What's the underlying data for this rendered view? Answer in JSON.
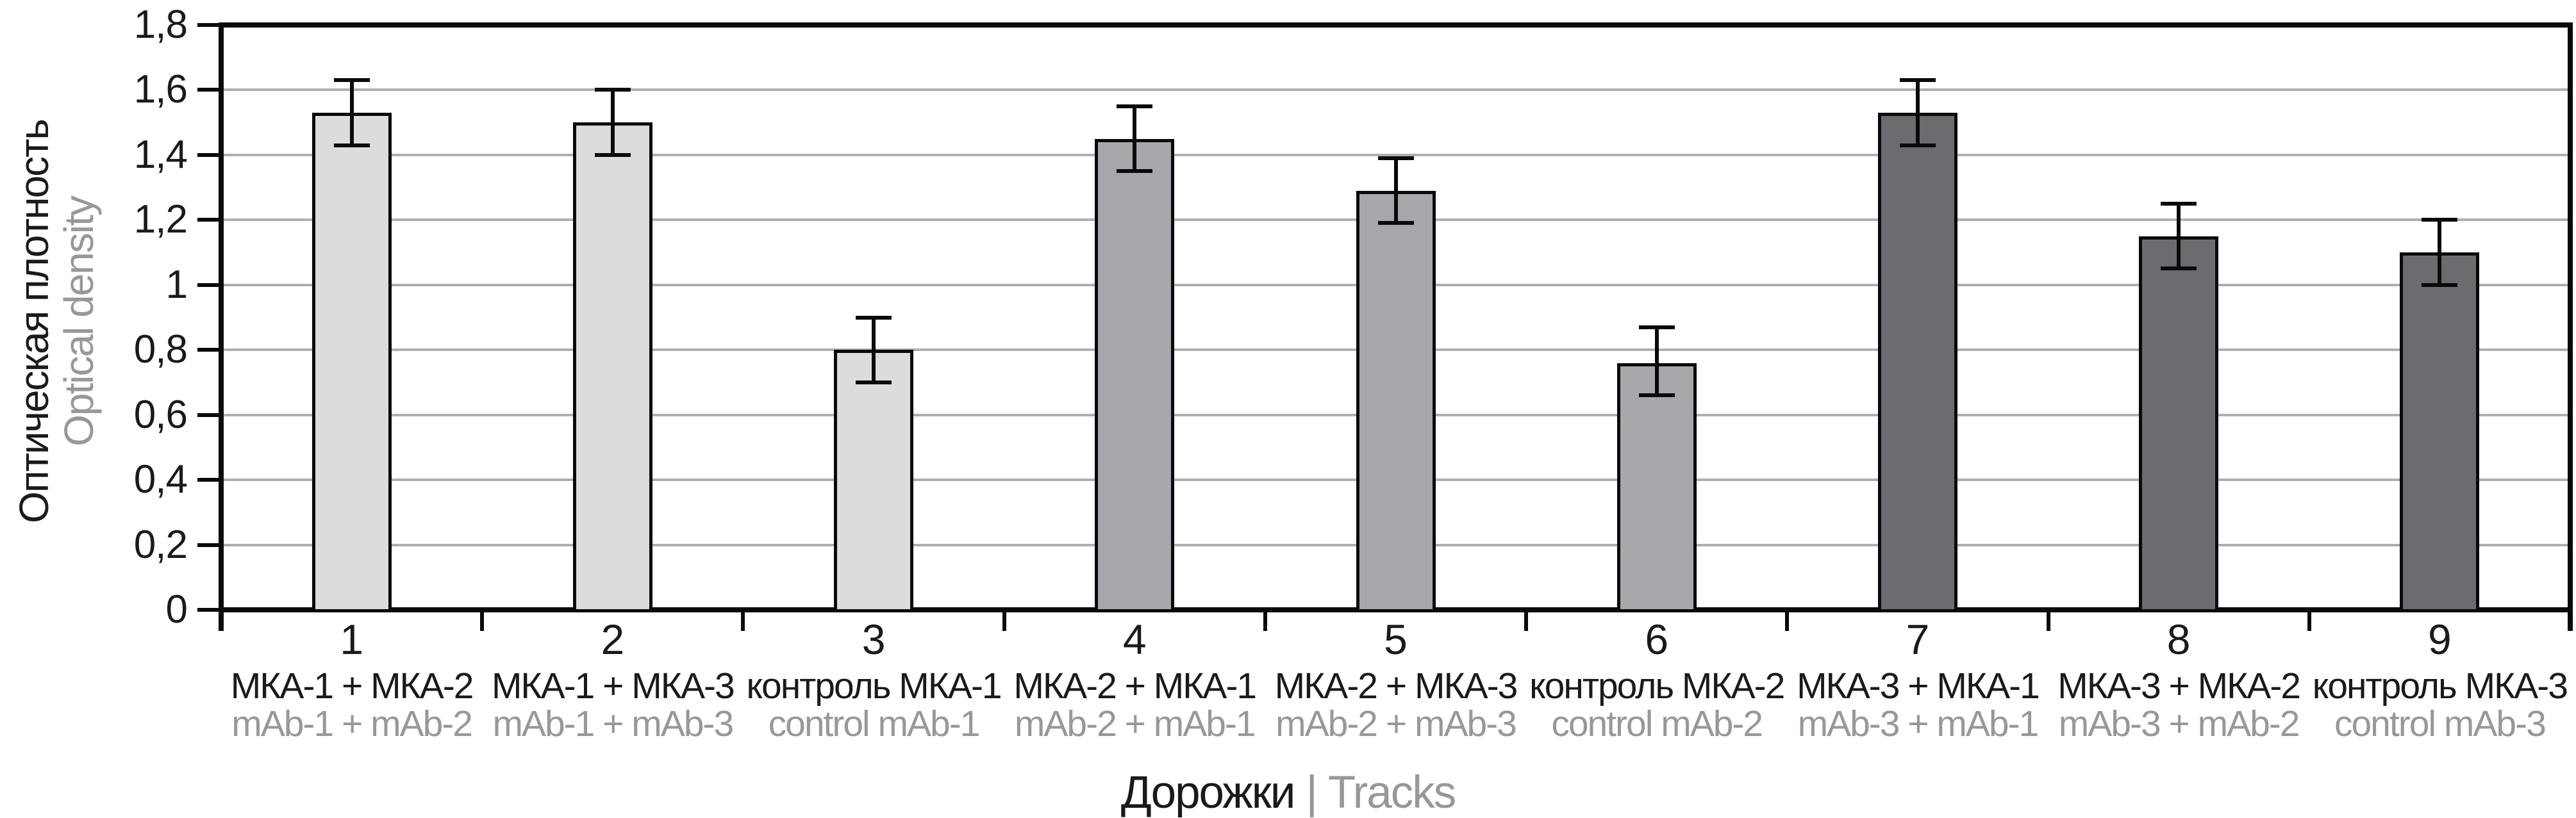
{
  "chart_data": {
    "type": "bar",
    "title": "",
    "y_axis": {
      "label_ru": "Оптическая плотность",
      "label_en": "Optical density",
      "ylim": [
        0,
        1.8
      ],
      "tick_step": 0.2,
      "tick_labels": [
        "0",
        "0,2",
        "0,4",
        "0,6",
        "0,8",
        "1",
        "1,2",
        "1,4",
        "1,6",
        "1,8"
      ]
    },
    "x_axis": {
      "label_ru": "Дорожки",
      "label_separator": "|",
      "label_en": "Tracks"
    },
    "grid": true,
    "legend": "none",
    "group_colors": [
      "#dcdcde",
      "#a7a8ac",
      "#6b6c70"
    ],
    "categories": [
      {
        "number": "1",
        "label_ru": "МКА-1 + МКА-2",
        "label_en": "mAb-1 + mAb-2",
        "value": 1.53,
        "err_low": 1.43,
        "err_high": 1.63,
        "group": 0
      },
      {
        "number": "2",
        "label_ru": "МКА-1 + МКА-3",
        "label_en": "mAb-1 + mAb-3",
        "value": 1.5,
        "err_low": 1.4,
        "err_high": 1.6,
        "group": 0
      },
      {
        "number": "3",
        "label_ru": "контроль МКА-1",
        "label_en": "control mAb-1",
        "value": 0.8,
        "err_low": 0.7,
        "err_high": 0.9,
        "group": 0
      },
      {
        "number": "4",
        "label_ru": "МКА-2 + МКА-1",
        "label_en": "mAb-2 + mAb-1",
        "value": 1.45,
        "err_low": 1.35,
        "err_high": 1.55,
        "group": 1
      },
      {
        "number": "5",
        "label_ru": "МКА-2 + МКА-3",
        "label_en": "mAb-2 + mAb-3",
        "value": 1.29,
        "err_low": 1.19,
        "err_high": 1.39,
        "group": 1
      },
      {
        "number": "6",
        "label_ru": "контроль МКА-2",
        "label_en": "control mAb-2",
        "value": 0.76,
        "err_low": 0.66,
        "err_high": 0.87,
        "group": 1
      },
      {
        "number": "7",
        "label_ru": "МКА-3 + МКА-1",
        "label_en": "mAb-3 + mAb-1",
        "value": 1.53,
        "err_low": 1.43,
        "err_high": 1.63,
        "group": 2
      },
      {
        "number": "8",
        "label_ru": "МКА-3 + МКА-2",
        "label_en": "mAb-3 + mAb-2",
        "value": 1.15,
        "err_low": 1.05,
        "err_high": 1.25,
        "group": 2
      },
      {
        "number": "9",
        "label_ru": "контроль МКА-3",
        "label_en": "control mAb-3",
        "value": 1.1,
        "err_low": 1.0,
        "err_high": 1.2,
        "group": 2
      }
    ]
  }
}
